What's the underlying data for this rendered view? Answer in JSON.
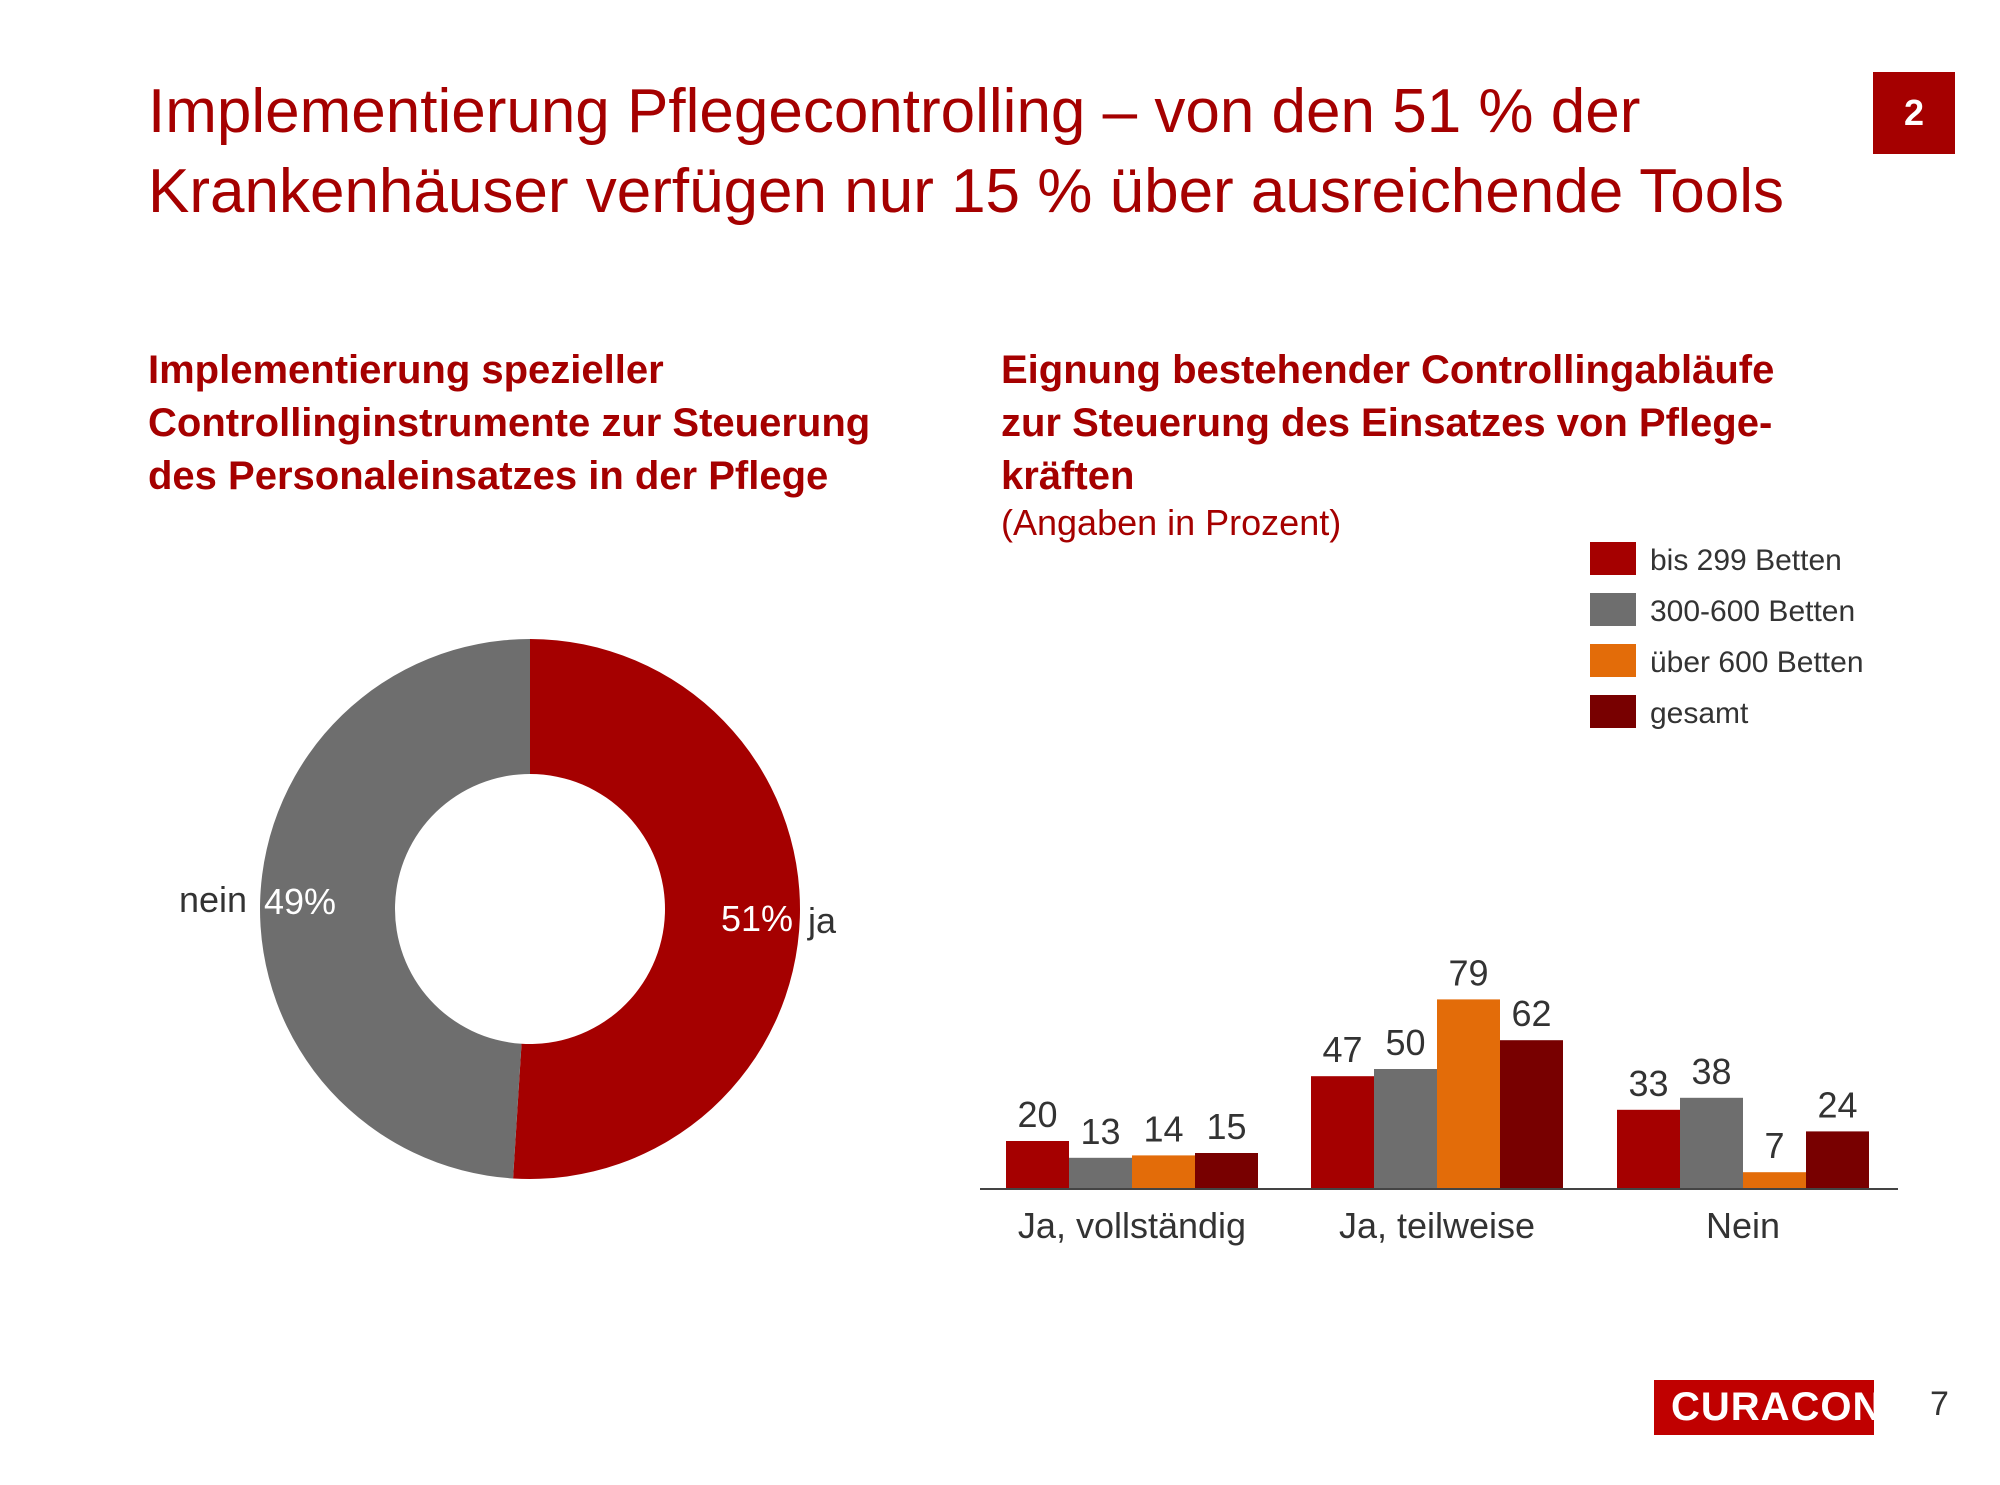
{
  "title_lines": [
    "Implementierung Pflegecontrolling – von den 51 % der",
    "Krankenhäuser verfügen nur 15 % über ausreichende Tools"
  ],
  "slide_badge": "2",
  "colors": {
    "brand": "#A50000",
    "gray": "#6E6E6E",
    "orange": "#E36C09",
    "dark_red": "#780000"
  },
  "chart_data": [
    {
      "type": "pie",
      "style": "donut",
      "title_lines": [
        "Implementierung spezieller",
        "Controllinginstrumente zur Steuerung",
        "des Personaleinsatzes in der Pflege"
      ],
      "slices": [
        {
          "name": "ja",
          "value": 51,
          "value_label": "51%",
          "color": "#A50000"
        },
        {
          "name": "nein",
          "value": 49,
          "value_label": "49%",
          "color": "#6E6E6E"
        }
      ]
    },
    {
      "type": "bar",
      "title_lines": [
        "Eignung bestehender Controllingabläufe",
        "zur Steuerung des Einsatzes von Pflege-",
        "kräften"
      ],
      "note": "(Angaben in Prozent)",
      "categories": [
        "Ja, vollständig",
        "Ja, teilweise",
        "Nein"
      ],
      "series": [
        {
          "name": "bis 299 Betten",
          "color": "#A50000",
          "values": [
            20,
            47,
            33
          ]
        },
        {
          "name": "300-600 Betten",
          "color": "#6E6E6E",
          "values": [
            13,
            50,
            38
          ]
        },
        {
          "name": "über 600 Betten",
          "color": "#E36C09",
          "values": [
            14,
            79,
            7
          ]
        },
        {
          "name": "gesamt",
          "color": "#780000",
          "values": [
            15,
            62,
            24
          ]
        }
      ],
      "ylim": [
        0,
        100
      ],
      "grid": false,
      "legend_position": "top-right"
    }
  ],
  "footer": {
    "logo_text": "CURACON",
    "page_number": "7"
  }
}
